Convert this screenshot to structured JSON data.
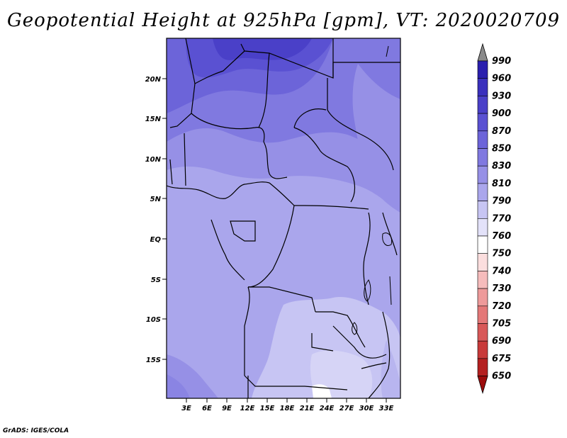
{
  "title": "Geopotential Height at 925hPa [gpm], VT: 2020020709",
  "footer": "GrADS: IGES/COLA",
  "map": {
    "lat_labels": [
      "20N",
      "15N",
      "10N",
      "5N",
      "EQ",
      "5S",
      "10S",
      "15S"
    ],
    "lon_labels": [
      "3E",
      "6E",
      "9E",
      "12E",
      "15E",
      "18E",
      "21E",
      "24E",
      "27E",
      "30E",
      "33E"
    ]
  },
  "colorbar": {
    "levels": [
      "990",
      "960",
      "930",
      "900",
      "870",
      "850",
      "830",
      "810",
      "790",
      "770",
      "760",
      "750",
      "740",
      "730",
      "720",
      "705",
      "690",
      "675",
      "650"
    ],
    "colors": [
      "#1a0f9c",
      "#2a1fae",
      "#3a30bd",
      "#4a40c8",
      "#5a51d2",
      "#6c64d9",
      "#8079e0",
      "#9690e6",
      "#aaa6ec",
      "#c7c5f3",
      "#e3e2f9",
      "#ffffff",
      "#fbdede",
      "#f6bcbc",
      "#ee9a9a",
      "#e47878",
      "#d85858",
      "#c83a3a",
      "#b42020",
      "#9c0c0c"
    ]
  }
}
